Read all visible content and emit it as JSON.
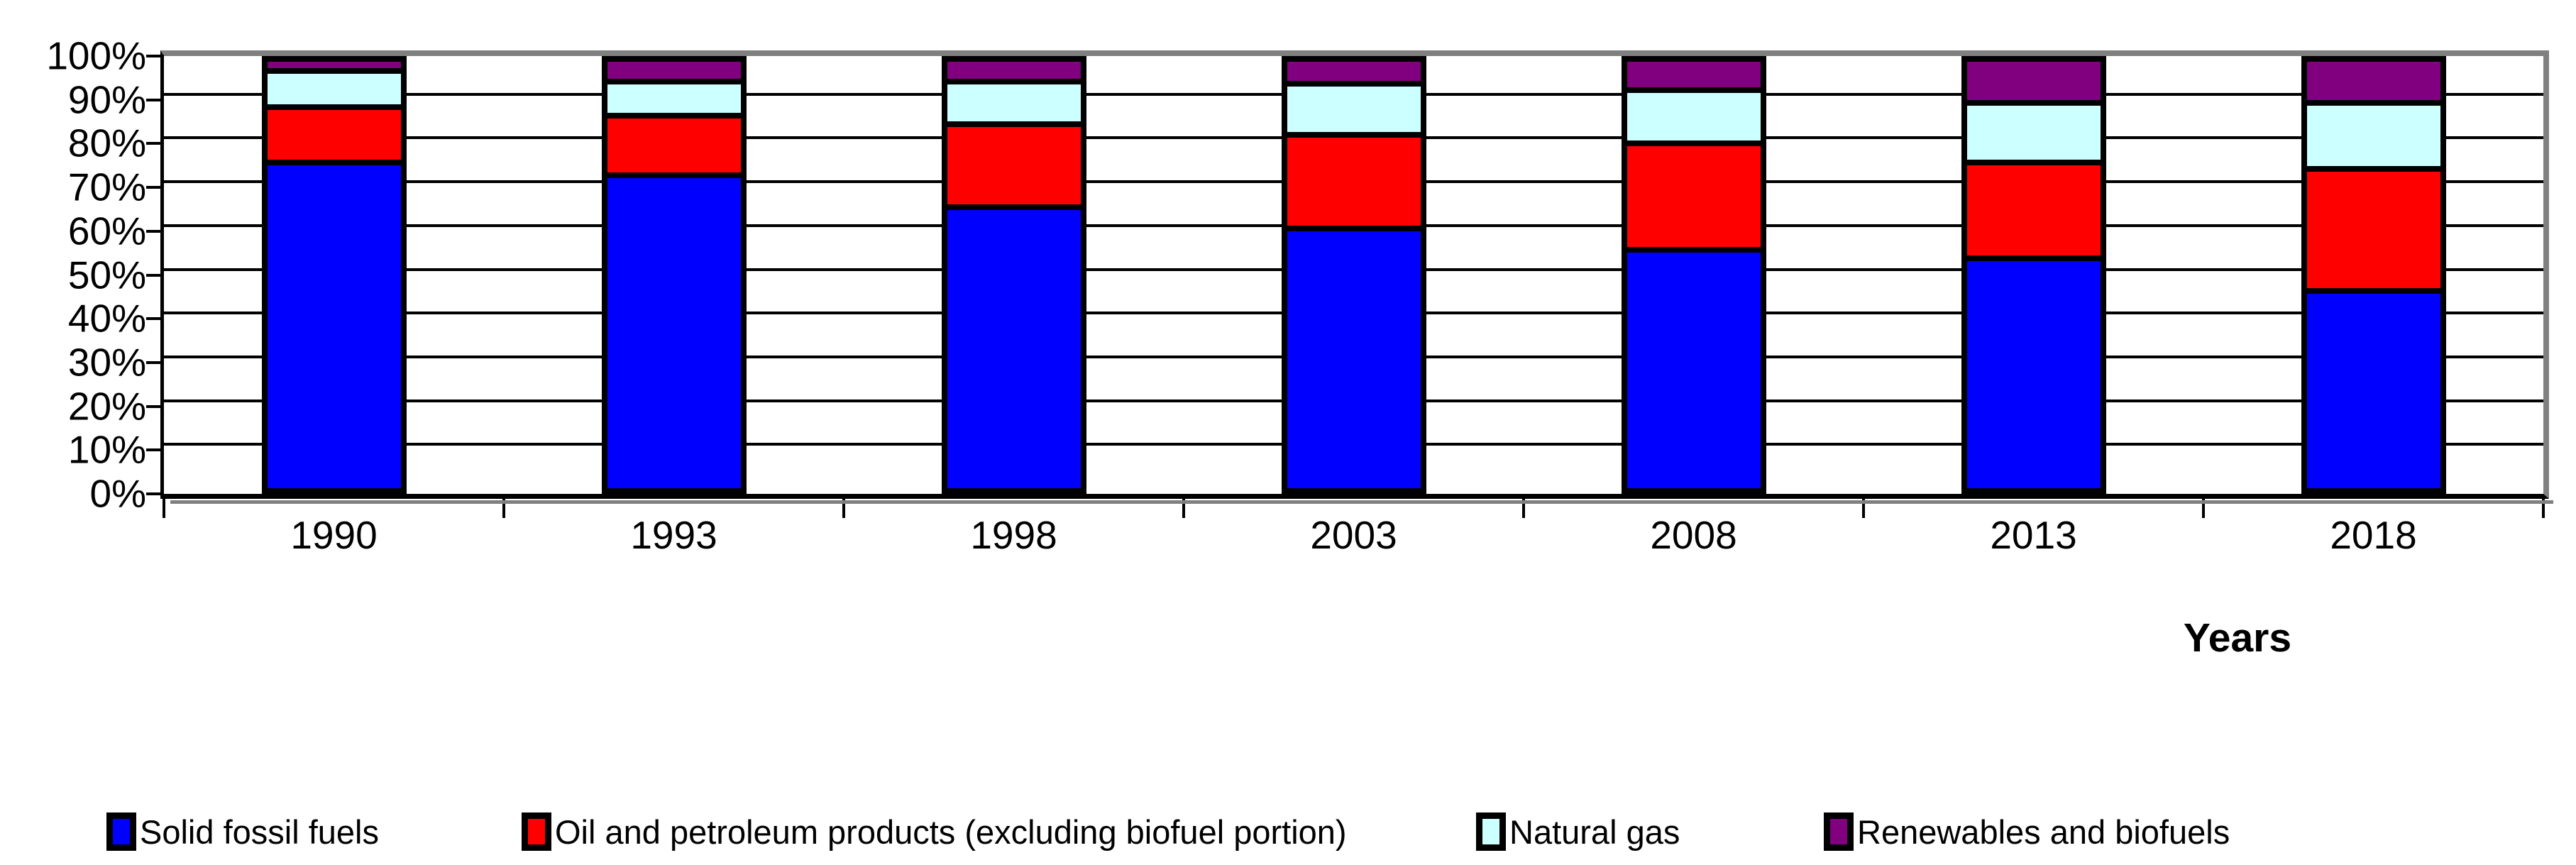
{
  "chart_data": {
    "type": "bar",
    "stacked": true,
    "percent_stacked": true,
    "title": "",
    "xlabel": "Years",
    "ylabel": "",
    "ylim": [
      0,
      100
    ],
    "ytick_labels": [
      "100%",
      "90%",
      "80%",
      "70%",
      "60%",
      "50%",
      "40%",
      "30%",
      "20%",
      "10%",
      "0%"
    ],
    "grid": true,
    "legend_position": "bottom",
    "categories": [
      "1990",
      "1993",
      "1998",
      "2003",
      "2008",
      "2013",
      "2018"
    ],
    "series": [
      {
        "name": "Solid fossil fuels",
        "color": "#0000FF",
        "values": [
          77,
          74,
          66.5,
          61.5,
          56.5,
          54.5,
          47
        ]
      },
      {
        "name": "Oil and petroleum products (excluding biofuel portion)",
        "color": "#FF0000",
        "values": [
          13,
          14,
          19.5,
          22,
          25,
          22.5,
          28.5
        ]
      },
      {
        "name": "Natural gas",
        "color": "#CCFFFF",
        "values": [
          8.5,
          8,
          10,
          12,
          12.5,
          14,
          15.5
        ]
      },
      {
        "name": "Renewables and biofuels",
        "color": "#800080",
        "values": [
          1.5,
          4,
          4,
          4.5,
          6,
          9,
          9
        ]
      }
    ]
  },
  "colors": {
    "plot_border": "#808080",
    "gridline": "#000000",
    "segment_border": "#000000",
    "background": "#FFFFFF"
  },
  "legend_x_positions": [
    150,
    735,
    2080,
    2570
  ]
}
